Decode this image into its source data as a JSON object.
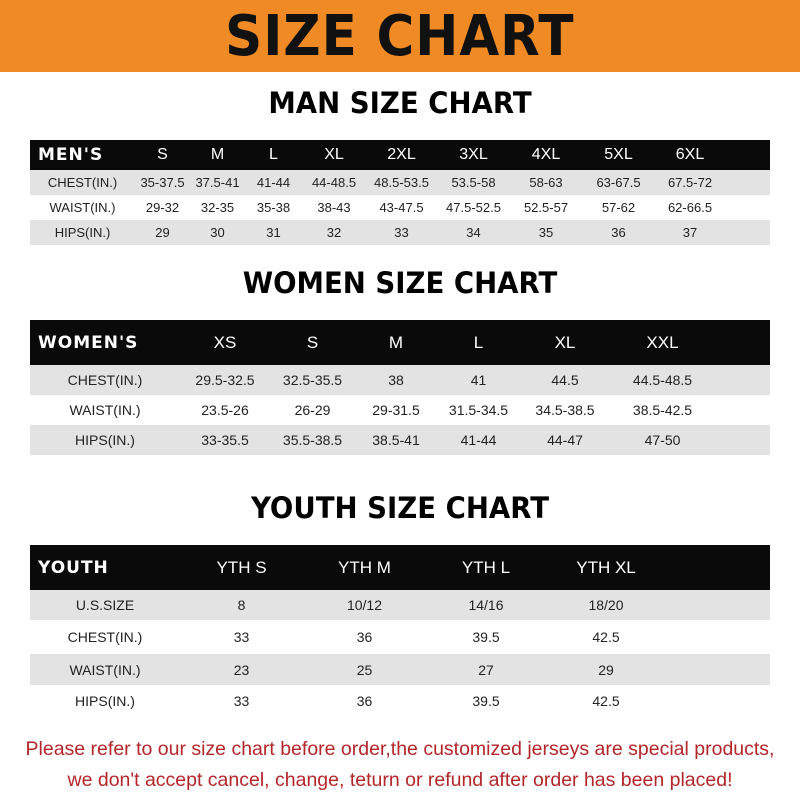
{
  "title": "SIZE CHART",
  "colors": {
    "banner": "#f08a24",
    "header_row": "#0a0a0a",
    "stripe": "#e3e3e3",
    "note": "#b3262a"
  },
  "men": {
    "heading": "MAN SIZE CHART",
    "columns": [
      "MEN'S",
      "S",
      "M",
      "L",
      "XL",
      "2XL",
      "3XL",
      "4XL",
      "5XL",
      "6XL"
    ],
    "rows": [
      [
        "CHEST(IN.)",
        "35-37.5",
        "37.5-41",
        "41-44",
        "44-48.5",
        "48.5-53.5",
        "53.5-58",
        "58-63",
        "63-67.5",
        "67.5-72"
      ],
      [
        "WAIST(IN.)",
        "29-32",
        "32-35",
        "35-38",
        "38-43",
        "43-47.5",
        "47.5-52.5",
        "52.5-57",
        "57-62",
        "62-66.5"
      ],
      [
        "HIPS(IN.)",
        "29",
        "30",
        "31",
        "32",
        "33",
        "34",
        "35",
        "36",
        "37"
      ]
    ]
  },
  "women": {
    "heading": "WOMEN SIZE CHART",
    "columns": [
      "WOMEN'S",
      "XS",
      "S",
      "M",
      "L",
      "XL",
      "XXL"
    ],
    "rows": [
      [
        "CHEST(IN.)",
        "29.5-32.5",
        "32.5-35.5",
        "38",
        "41",
        "44.5",
        "44.5-48.5"
      ],
      [
        "WAIST(IN.)",
        "23.5-26",
        "26-29",
        "29-31.5",
        "31.5-34.5",
        "34.5-38.5",
        "38.5-42.5"
      ],
      [
        "HIPS(IN.)",
        "33-35.5",
        "35.5-38.5",
        "38.5-41",
        "41-44",
        "44-47",
        "47-50"
      ]
    ]
  },
  "youth": {
    "heading": "YOUTH SIZE CHART",
    "columns": [
      "YOUTH",
      "YTH S",
      "YTH M",
      "YTH L",
      "YTH XL"
    ],
    "rows": [
      [
        "U.S.SIZE",
        "8",
        "10/12",
        "14/16",
        "18/20"
      ],
      [
        "CHEST(IN.)",
        "33",
        "36",
        "39.5",
        "42.5"
      ],
      [
        "WAIST(IN.)",
        "23",
        "25",
        "27",
        "29"
      ],
      [
        "HIPS(IN.)",
        "33",
        "36",
        "39.5",
        "42.5"
      ]
    ]
  },
  "note": [
    "Please refer to our size chart before order,the customized jerseys are special products,",
    "we don't accept cancel, change, teturn or refund after order has been placed!"
  ]
}
